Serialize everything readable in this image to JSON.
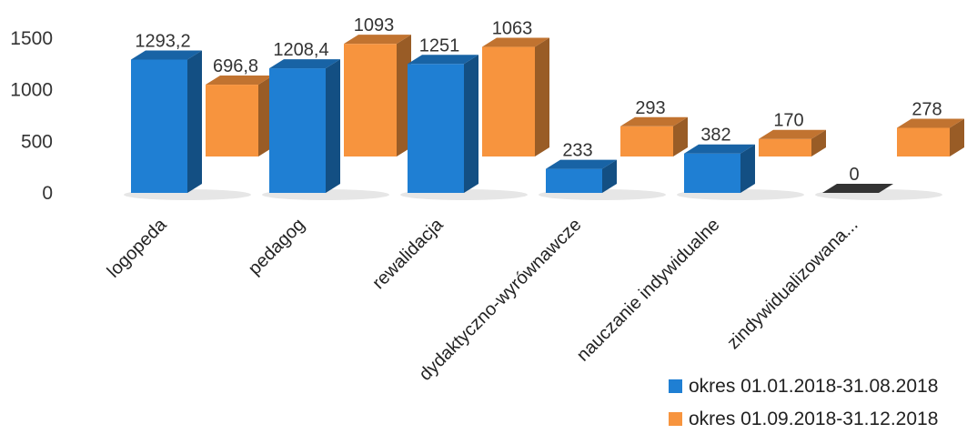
{
  "chart_data": {
    "type": "bar",
    "subtype": "3d-clustered-column",
    "title": "",
    "xlabel": "",
    "ylabel": "",
    "ylim": [
      0,
      1500
    ],
    "yticks": [
      0,
      500,
      1000,
      1500
    ],
    "ytick_labels": [
      "0",
      "500",
      "1000",
      "1500"
    ],
    "grid": false,
    "legend_position": "bottom-right",
    "categories": [
      "logopeda",
      "pedagog",
      "rewalidacja",
      "dydaktyczno-wyrównawcze",
      "nauczanie indywidualne",
      "zindywidualizowana..."
    ],
    "series": [
      {
        "name": "okres 01.01.2018-31.08.2018",
        "color": "#1f7fd3",
        "values": [
          1293.2,
          1208.4,
          1251,
          233,
          382,
          0
        ],
        "labels": [
          "1293,2",
          "1208,4",
          "1251",
          "233",
          "382",
          "0"
        ]
      },
      {
        "name": "okres 01.09.2018-31.12.2018",
        "color": "#f7943e",
        "values": [
          696.8,
          1093,
          1063,
          293,
          170,
          278
        ],
        "labels": [
          "696,8",
          "1093",
          "1063",
          "293",
          "170",
          "278"
        ]
      }
    ]
  }
}
